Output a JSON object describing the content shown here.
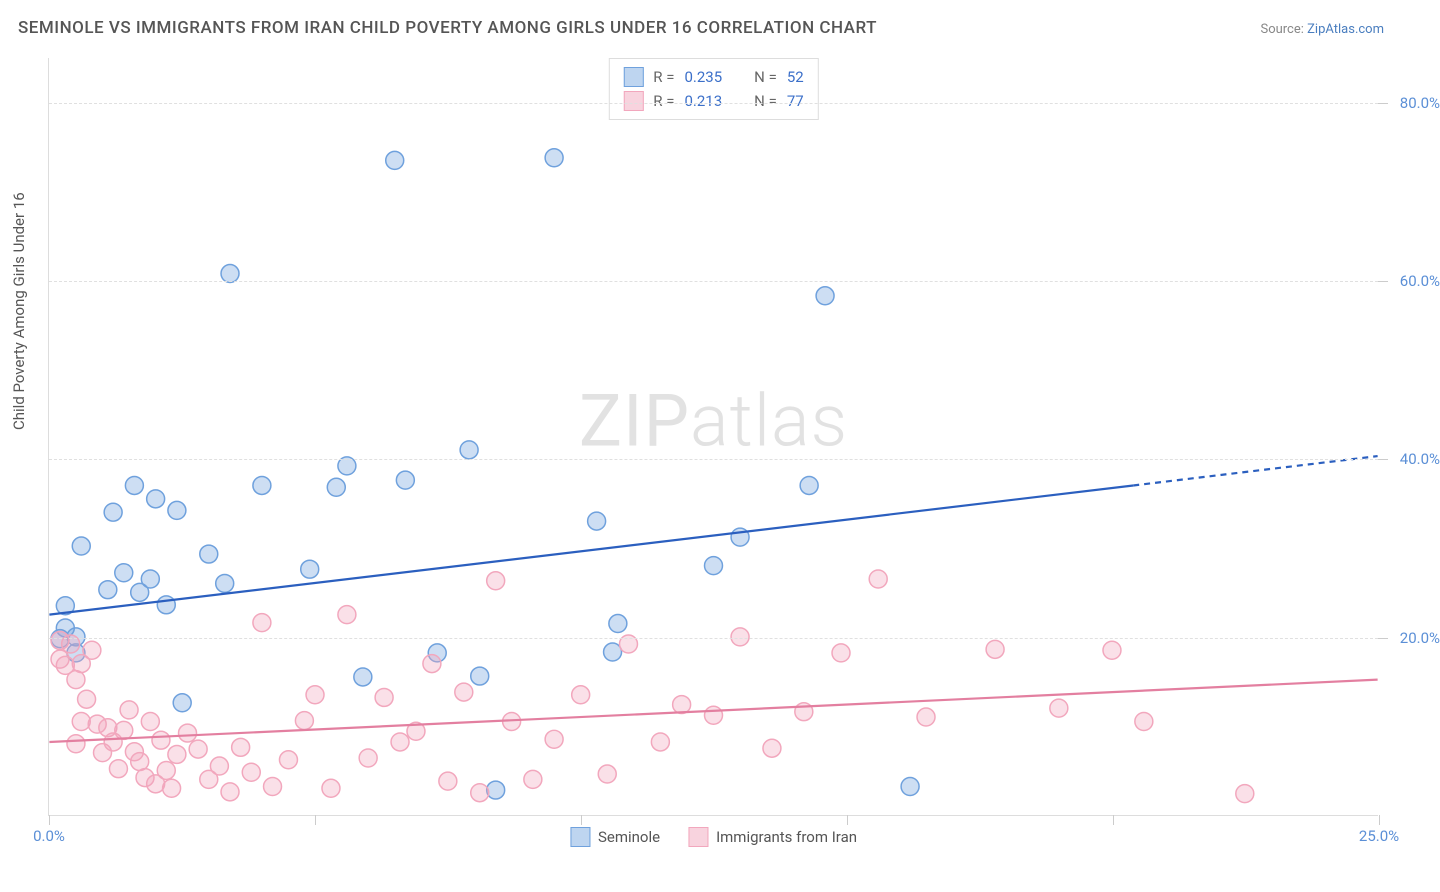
{
  "title": "SEMINOLE VS IMMIGRANTS FROM IRAN CHILD POVERTY AMONG GIRLS UNDER 16 CORRELATION CHART",
  "source_prefix": "Source: ",
  "source_name": "ZipAtlas.com",
  "y_axis_label": "Child Poverty Among Girls Under 16",
  "watermark_a": "ZIP",
  "watermark_b": "atlas",
  "chart": {
    "type": "scatter",
    "xlim": [
      0,
      25
    ],
    "ylim": [
      0,
      85
    ],
    "x_tick_positions": [
      0,
      5,
      10,
      15,
      20,
      25
    ],
    "x_tick_labels": [
      "0.0%",
      "",
      "",
      "",
      "",
      "25.0%"
    ],
    "y_tick_positions": [
      20,
      40,
      60,
      80
    ],
    "y_tick_labels": [
      "20.0%",
      "40.0%",
      "60.0%",
      "80.0%"
    ],
    "background_color": "#ffffff",
    "grid_color": "#e0e0e0",
    "grid_dash": "4,4",
    "marker_radius": 9,
    "marker_stroke_width": 1.5,
    "marker_fill_opacity": 0.35,
    "trend_line_width": 2.2,
    "series": [
      {
        "name": "Seminole",
        "color": "#6fa1dd",
        "line_color": "#2b5fbf",
        "R": "0.235",
        "N": "52",
        "trend": {
          "x1": 0,
          "y1": 22.5,
          "x2": 20.4,
          "y2": 37.0,
          "dash_x2": 25,
          "dash_y2": 40.3
        },
        "points": [
          [
            0.2,
            19.8
          ],
          [
            0.3,
            21.0
          ],
          [
            0.3,
            23.5
          ],
          [
            0.5,
            18.2
          ],
          [
            0.5,
            20.0
          ],
          [
            0.6,
            30.2
          ],
          [
            1.1,
            25.3
          ],
          [
            1.2,
            34.0
          ],
          [
            1.4,
            27.2
          ],
          [
            1.6,
            37.0
          ],
          [
            1.7,
            25.0
          ],
          [
            1.9,
            26.5
          ],
          [
            2.0,
            35.5
          ],
          [
            2.2,
            23.6
          ],
          [
            2.4,
            34.2
          ],
          [
            2.5,
            12.6
          ],
          [
            3.0,
            29.3
          ],
          [
            3.3,
            26.0
          ],
          [
            3.4,
            60.8
          ],
          [
            4.0,
            37.0
          ],
          [
            4.9,
            27.6
          ],
          [
            5.4,
            36.8
          ],
          [
            5.6,
            39.2
          ],
          [
            5.9,
            15.5
          ],
          [
            6.5,
            73.5
          ],
          [
            6.7,
            37.6
          ],
          [
            7.3,
            18.2
          ],
          [
            7.9,
            41.0
          ],
          [
            8.1,
            15.6
          ],
          [
            8.4,
            2.8
          ],
          [
            9.5,
            73.8
          ],
          [
            10.3,
            33.0
          ],
          [
            10.6,
            18.3
          ],
          [
            10.7,
            21.5
          ],
          [
            12.5,
            28.0
          ],
          [
            13.0,
            31.2
          ],
          [
            14.3,
            37.0
          ],
          [
            14.6,
            58.3
          ],
          [
            16.2,
            3.2
          ]
        ]
      },
      {
        "name": "Immigrants from Iran",
        "color": "#f2a7bd",
        "line_color": "#e37fa0",
        "R": "0.213",
        "N": "77",
        "trend": {
          "x1": 0,
          "y1": 8.2,
          "x2": 25,
          "y2": 15.2
        },
        "points": [
          [
            0.2,
            17.5
          ],
          [
            0.2,
            19.6
          ],
          [
            0.3,
            16.8
          ],
          [
            0.4,
            19.2
          ],
          [
            0.5,
            15.2
          ],
          [
            0.5,
            8.0
          ],
          [
            0.6,
            17.0
          ],
          [
            0.6,
            10.5
          ],
          [
            0.7,
            13.0
          ],
          [
            0.8,
            18.5
          ],
          [
            0.9,
            10.2
          ],
          [
            1.0,
            7.0
          ],
          [
            1.1,
            9.8
          ],
          [
            1.2,
            8.2
          ],
          [
            1.3,
            5.2
          ],
          [
            1.4,
            9.5
          ],
          [
            1.5,
            11.8
          ],
          [
            1.6,
            7.1
          ],
          [
            1.7,
            6.0
          ],
          [
            1.8,
            4.2
          ],
          [
            1.9,
            10.5
          ],
          [
            2.0,
            3.5
          ],
          [
            2.1,
            8.4
          ],
          [
            2.2,
            5.0
          ],
          [
            2.3,
            3.0
          ],
          [
            2.4,
            6.8
          ],
          [
            2.6,
            9.2
          ],
          [
            2.8,
            7.4
          ],
          [
            3.0,
            4.0
          ],
          [
            3.2,
            5.5
          ],
          [
            3.4,
            2.6
          ],
          [
            3.6,
            7.6
          ],
          [
            3.8,
            4.8
          ],
          [
            4.0,
            21.6
          ],
          [
            4.2,
            3.2
          ],
          [
            4.5,
            6.2
          ],
          [
            4.8,
            10.6
          ],
          [
            5.0,
            13.5
          ],
          [
            5.3,
            3.0
          ],
          [
            5.6,
            22.5
          ],
          [
            6.0,
            6.4
          ],
          [
            6.3,
            13.2
          ],
          [
            6.6,
            8.2
          ],
          [
            6.9,
            9.4
          ],
          [
            7.2,
            17.0
          ],
          [
            7.5,
            3.8
          ],
          [
            7.8,
            13.8
          ],
          [
            8.1,
            2.5
          ],
          [
            8.4,
            26.3
          ],
          [
            8.7,
            10.5
          ],
          [
            9.1,
            4.0
          ],
          [
            9.5,
            8.5
          ],
          [
            10.0,
            13.5
          ],
          [
            10.5,
            4.6
          ],
          [
            10.9,
            19.2
          ],
          [
            11.5,
            8.2
          ],
          [
            11.9,
            12.4
          ],
          [
            12.5,
            11.2
          ],
          [
            13.0,
            20.0
          ],
          [
            13.6,
            7.5
          ],
          [
            14.2,
            11.6
          ],
          [
            14.9,
            18.2
          ],
          [
            15.6,
            26.5
          ],
          [
            16.5,
            11.0
          ],
          [
            17.8,
            18.6
          ],
          [
            19.0,
            12.0
          ],
          [
            20.0,
            18.5
          ],
          [
            20.6,
            10.5
          ],
          [
            22.5,
            2.4
          ]
        ]
      }
    ]
  },
  "stats_box": {
    "label_R": "R =",
    "label_N": "N ="
  },
  "legend": {
    "series1": "Seminole",
    "series2": "Immigrants from Iran"
  }
}
